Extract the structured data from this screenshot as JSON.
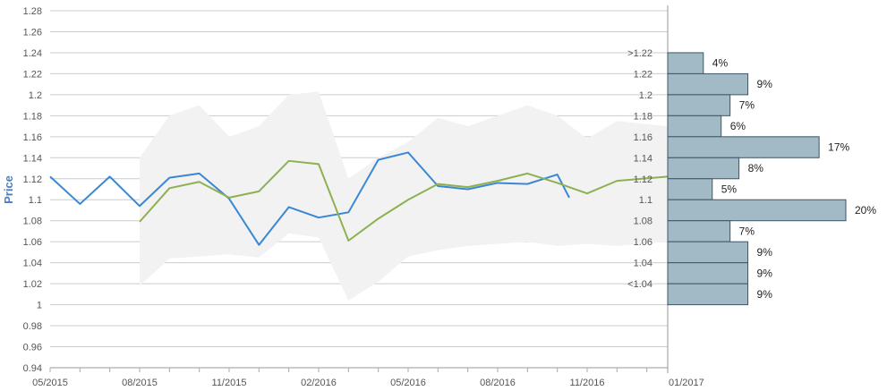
{
  "chart_data": {
    "type": "line",
    "ylabel": "Price",
    "ylim": [
      0.94,
      1.28
    ],
    "y_ticks": [
      0.94,
      0.96,
      0.98,
      1,
      1.02,
      1.04,
      1.06,
      1.08,
      1.1,
      1.12,
      1.14,
      1.16,
      1.18,
      1.2,
      1.22,
      1.24,
      1.26,
      1.28
    ],
    "y_tick_labels": [
      "0.94",
      "0.96",
      "0.98",
      "1",
      "1.02",
      "1.04",
      "1.06",
      "1.08",
      "1.1",
      "1.12",
      "1.14",
      "1.16",
      "1.18",
      "1.2",
      "1.22",
      "1.24",
      "1.26",
      "1.28"
    ],
    "x_tick_labels": [
      "05/2015",
      "08/2015",
      "11/2015",
      "02/2016",
      "05/2016",
      "08/2016",
      "11/2016",
      "01/2017"
    ],
    "x_tick_months": [
      0,
      3,
      6,
      9,
      12,
      15,
      18,
      20.7
    ],
    "grid": true,
    "colors": {
      "actual": "#3a87d4",
      "forecast": "#8db151",
      "band": "#f2f2f2",
      "bar_fill": "#a2b9c6",
      "bar_stroke": "#3e5666"
    },
    "series": [
      {
        "key": "actual",
        "x_months": [
          0,
          1,
          2,
          3,
          4,
          5,
          6,
          7,
          8,
          9,
          10,
          11,
          12,
          13,
          14,
          15,
          16,
          17,
          17.4
        ],
        "values": [
          1.122,
          1.096,
          1.122,
          1.094,
          1.121,
          1.125,
          1.101,
          1.057,
          1.093,
          1.083,
          1.088,
          1.138,
          1.145,
          1.113,
          1.11,
          1.116,
          1.115,
          1.124,
          1.102
        ]
      },
      {
        "key": "forecast",
        "x_months": [
          3,
          4,
          5,
          6,
          7,
          8,
          9,
          10,
          11,
          12,
          13,
          14,
          15,
          16,
          17,
          18,
          19,
          20.7
        ],
        "values": [
          1.079,
          1.111,
          1.117,
          1.102,
          1.108,
          1.137,
          1.134,
          1.061,
          1.082,
          1.1,
          1.115,
          1.112,
          1.118,
          1.125,
          1.116,
          1.106,
          1.118,
          1.122
        ]
      }
    ],
    "band": {
      "x_months": [
        3,
        4,
        5,
        6,
        7,
        8,
        9,
        10,
        11,
        12,
        13,
        14,
        15,
        16,
        17,
        18,
        19,
        20.7
      ],
      "upper": [
        1.14,
        1.18,
        1.19,
        1.16,
        1.17,
        1.2,
        1.203,
        1.12,
        1.14,
        1.155,
        1.178,
        1.17,
        1.18,
        1.19,
        1.18,
        1.158,
        1.175,
        1.17
      ],
      "lower": [
        1.018,
        1.044,
        1.046,
        1.048,
        1.045,
        1.068,
        1.064,
        1.004,
        1.022,
        1.046,
        1.052,
        1.056,
        1.058,
        1.06,
        1.056,
        1.058,
        1.056,
        1.06
      ]
    },
    "distribution": {
      "type": "bar",
      "categories": [
        ">1.22",
        "1.22",
        "1.2",
        "1.18",
        "1.16",
        "1.14",
        "1.12",
        "1.1",
        "1.08",
        "1.06",
        "1.04",
        "<1.04"
      ],
      "values": [
        4,
        9,
        7,
        6,
        17,
        8,
        5,
        20,
        7,
        9,
        9,
        9
      ],
      "value_labels": [
        "4%",
        "9%",
        "7%",
        "6%",
        "17%",
        "8%",
        "5%",
        "20%",
        "7%",
        "9%",
        "9%",
        "9%"
      ]
    }
  }
}
